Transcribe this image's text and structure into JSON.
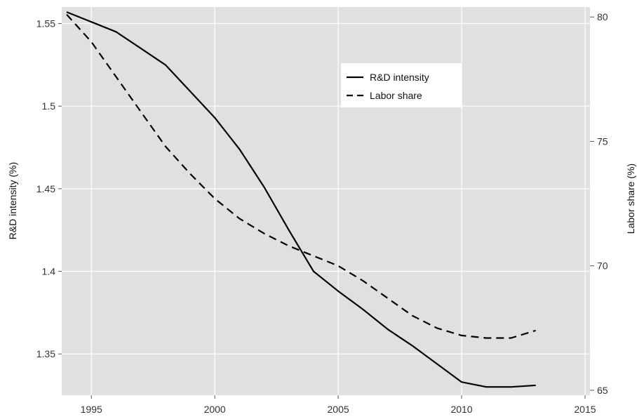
{
  "chart_data": {
    "type": "line",
    "title": "",
    "xlabel": "",
    "ylabel_left": "R&D intensity (%)",
    "ylabel_right": "Labor share (%)",
    "xlim": [
      1993.8,
      2015.2
    ],
    "ylim_left": [
      1.325,
      1.56
    ],
    "ylim_right": [
      64.8,
      80.4
    ],
    "x_ticks": [
      1995,
      2000,
      2005,
      2010,
      2015
    ],
    "x_tick_labels": [
      "1995",
      "2000",
      "2005",
      "2010",
      "2015"
    ],
    "y_left_ticks": [
      1.35,
      1.4,
      1.45,
      1.5,
      1.55
    ],
    "y_left_tick_labels": [
      "1.35",
      "1.4",
      "1.45",
      "1.5",
      "1.55"
    ],
    "y_right_ticks": [
      65,
      70,
      75,
      80
    ],
    "y_right_tick_labels": [
      "65",
      "70",
      "75",
      "80"
    ],
    "grid": true,
    "background": "#e0e0e0",
    "legend_position": "top-center",
    "series": [
      {
        "name": "R&D intensity",
        "axis": "left",
        "style": "solid",
        "color": "#000000",
        "x": [
          1994,
          1995,
          1996,
          1997,
          1998,
          1999,
          2000,
          2001,
          2002,
          2003,
          2004,
          2005,
          2006,
          2007,
          2008,
          2009,
          2010,
          2011,
          2012,
          2013
        ],
        "values": [
          1.557,
          1.551,
          1.545,
          1.535,
          1.525,
          1.509,
          1.493,
          1.474,
          1.451,
          1.425,
          1.4,
          1.388,
          1.377,
          1.365,
          1.355,
          1.344,
          1.333,
          1.33,
          1.33,
          1.331
        ]
      },
      {
        "name": "Labor share",
        "axis": "right",
        "style": "dashed",
        "color": "#000000",
        "x": [
          1994,
          1995,
          1996,
          1997,
          1998,
          1999,
          2000,
          2001,
          2002,
          2003,
          2004,
          2005,
          2006,
          2007,
          2008,
          2009,
          2010,
          2011,
          2012,
          2013
        ],
        "values": [
          80.1,
          79.0,
          77.6,
          76.2,
          74.8,
          73.7,
          72.7,
          71.9,
          71.3,
          70.8,
          70.4,
          70.0,
          69.4,
          68.7,
          68.0,
          67.5,
          67.2,
          67.1,
          67.1,
          67.4
        ]
      }
    ]
  }
}
